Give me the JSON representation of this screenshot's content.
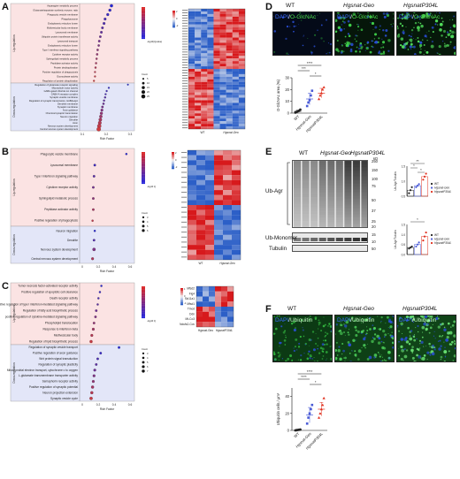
{
  "panels": {
    "A": {
      "label": "A"
    },
    "B": {
      "label": "B"
    },
    "C": {
      "label": "C"
    },
    "D": {
      "label": "D"
    },
    "E": {
      "label": "E"
    },
    "F": {
      "label": "F"
    }
  },
  "dot_plots": [
    {
      "id": "A",
      "up_label": "Up-regulation",
      "down_label": "Down-regulation",
      "up_terms": [
        "Asparagine metabolic process",
        "Glutamate/aspartate synthetic enzyme, ratio",
        "Phagocytic vesicle membrane",
        "Phagolysosome",
        "Endoplasmic reticulum lumen",
        "Multivesicular body membrane",
        "Lysosomal membrane",
        "Ubiquitin protein transferase activity",
        "Lysosomal transport",
        "Endoplasmic reticulum lumen",
        "Type I interferon signaling pathway",
        "Cytokine receptor activity",
        "Sphingolipid metabolic process",
        "Peptidase activator activity",
        "Protein deubiquitination",
        "Positive regulation of phagocytosis",
        "Exonuclease activity",
        "Regulation of protein ubiquitination"
      ],
      "down_terms": [
        "Regulation of glutamate receptor signaling",
        "Microtubule motor activity",
        "GABA-gated chloride ion channel",
        "GABA-A receptor complex",
        "Synaptic vesicle membrane",
        "Regulation of synaptic transmission, GABAergic",
        "Dendrite membrane",
        "Synaptic membrane",
        "Axon guidance",
        "Chemical synaptic transmission",
        "Neuron migration",
        "Dendrite",
        "Axon",
        "Nervous system development",
        "Central nervous system development"
      ],
      "up": [
        [
          0.055,
          14
        ],
        [
          0.052,
          12
        ],
        [
          0.048,
          11
        ],
        [
          0.043,
          10
        ],
        [
          0.041,
          10
        ],
        [
          0.038,
          9
        ],
        [
          0.036,
          9
        ],
        [
          0.034,
          8
        ],
        [
          0.032,
          8
        ],
        [
          0.031,
          7
        ],
        [
          0.029,
          7
        ],
        [
          0.028,
          7
        ],
        [
          0.027,
          6
        ],
        [
          0.026,
          6
        ],
        [
          0.025,
          6
        ],
        [
          0.024,
          5
        ],
        [
          0.024,
          5
        ],
        [
          0.022,
          5
        ]
      ],
      "down": [
        [
          0.086,
          4
        ],
        [
          0.05,
          5
        ],
        [
          0.046,
          5
        ],
        [
          0.044,
          5
        ],
        [
          0.043,
          6
        ],
        [
          0.041,
          6
        ],
        [
          0.04,
          7
        ],
        [
          0.038,
          8
        ],
        [
          0.037,
          10
        ],
        [
          0.036,
          12
        ],
        [
          0.035,
          14
        ],
        [
          0.034,
          16
        ],
        [
          0.033,
          18
        ],
        [
          0.032,
          24
        ],
        [
          0.031,
          26
        ]
      ],
      "x_title": "Rich Factor",
      "x_ticks": [
        "0.1",
        "0.2",
        "0.3"
      ],
      "legend_count": [
        "Count",
        "5",
        "10",
        "15",
        "20",
        "25"
      ],
      "legend_logq": "-log10(Qvalue)"
    },
    {
      "id": "B",
      "up_label": "Up-regulation",
      "down_label": "Down-regulation",
      "up_terms": [
        "Phagocytic vesicle membrane",
        "Lysosomal membrane",
        "Type I interferon signaling pathway",
        "Cytokine receptor activity",
        "Sphingolipid metabolic process",
        "Peptidase activator activity",
        "Positive regulation of phagocytosis"
      ],
      "down_terms": [
        "Neuron migration",
        "Dendrite",
        "Nervous system development",
        "Central nervous system development"
      ],
      "up": [
        [
          0.6,
          3
        ],
        [
          0.17,
          4
        ],
        [
          0.16,
          4
        ],
        [
          0.15,
          4
        ],
        [
          0.15,
          4
        ],
        [
          0.15,
          4
        ],
        [
          0.14,
          3
        ]
      ],
      "down": [
        [
          0.17,
          3
        ],
        [
          0.16,
          4
        ],
        [
          0.16,
          7
        ],
        [
          0.14,
          5
        ]
      ],
      "x_title": "Rich Factor",
      "x_ticks": [
        "0",
        "0.2",
        "0.4",
        "0.6"
      ],
      "legend_count": [
        "Count",
        "3",
        "4",
        "5",
        "6"
      ],
      "legend_logq": "-log10 Q"
    },
    {
      "id": "C",
      "up_label": "Up-regulation",
      "down_label": "Down-regulation",
      "up_terms": [
        "Tumor necrosis factor-activated receptor activity",
        "Positive regulation of apoptotic cell clearance",
        "Death receptor activity",
        "Positive regulation of type I interferon-mediated signaling pathway",
        "Regulation of fatty acid biosynthetic process",
        "positive regulation of cytokine-mediated signaling pathway",
        "Phospholipid translocation",
        "Response to interferon-beta",
        "Multivesicular body",
        "Regulation of lipid biosynthetic process"
      ],
      "down_terms": [
        "Regulation of synaptic vesicle transport",
        "Positive regulation of axon guidance",
        "Wnt protein signal transduction",
        "Regulation of synaptic plasticity",
        "Mitochondrial electron transport, cytochrome c to oxygen",
        "L-glutamate transmembrane transporter activity",
        "Semaphorin receptor activity",
        "Positive regulation of synaptic potential",
        "Neuron projection extension",
        "Synaptic vesicle cycle"
      ],
      "up": [
        [
          0.26,
          3
        ],
        [
          0.24,
          3
        ],
        [
          0.22,
          3
        ],
        [
          0.21,
          3
        ],
        [
          0.19,
          4
        ],
        [
          0.18,
          4
        ],
        [
          0.16,
          4
        ],
        [
          0.15,
          5
        ],
        [
          0.13,
          5
        ],
        [
          0.12,
          6
        ]
      ],
      "down": [
        [
          0.5,
          4
        ],
        [
          0.25,
          4
        ],
        [
          0.21,
          4
        ],
        [
          0.19,
          4
        ],
        [
          0.17,
          5
        ],
        [
          0.16,
          5
        ],
        [
          0.15,
          5
        ],
        [
          0.14,
          6
        ],
        [
          0.13,
          6
        ],
        [
          0.12,
          7
        ]
      ],
      "x_title": "Rich Factor",
      "x_ticks": [
        "0",
        "0.2",
        "0.4",
        "0.6"
      ],
      "legend_count": [
        "Count",
        "3",
        "4",
        "5",
        "6",
        "7"
      ],
      "legend_logq": "-log10 Q"
    }
  ],
  "heatmaps": [
    {
      "id": "A",
      "rows": 46,
      "cols": 9,
      "x_labels": [
        "WT",
        "Hgsnat-Geo"
      ],
      "scale": [
        "2",
        "0",
        "-2"
      ]
    },
    {
      "id": "B",
      "rows": 22,
      "cols": 6,
      "x_labels": [
        "WT",
        "Hgsnat-Geo"
      ],
      "scale": [
        "2",
        "0",
        "-2"
      ]
    },
    {
      "id": "C",
      "rows": 8,
      "cols": 6,
      "x_labels": [
        "Hgsnat-Geo",
        "HgsnatP304L"
      ],
      "row_labels": [
        "Mfsd2",
        "Fig4",
        "Slc11a1",
        "Mfsd1",
        "Tmod",
        "Ddn",
        "Mt-Co3",
        "Ndufs2-Cov"
      ],
      "scale": [
        "1",
        "0",
        "-1"
      ]
    }
  ],
  "panel_D": {
    "titles": [
      "WT",
      "Hgsnat-Geo",
      "HgsnatP304L"
    ],
    "overlay": {
      "dapi": "DAPI",
      "marker": "O-GlcNAc"
    },
    "chart_data": {
      "type": "scatter",
      "categories": [
        "WT",
        "Hgsnat-Geo",
        "HgsnatP304L"
      ],
      "values": [
        1.5,
        12,
        17
      ],
      "points": [
        [
          0.5,
          1,
          1.5,
          2,
          3
        ],
        [
          6,
          9,
          11,
          15,
          19
        ],
        [
          12,
          15,
          17,
          20,
          22
        ]
      ],
      "errors": [
        1,
        5,
        4
      ],
      "ylabel": "O-GlcNAc area (%)",
      "ylim": [
        0,
        30
      ],
      "y_ticks": [
        "0",
        "10",
        "20",
        "30"
      ],
      "significance": [
        "****",
        "***",
        "*"
      ]
    }
  },
  "panel_E": {
    "header": [
      "WT",
      "Hgsnat-Geo",
      "HgsnatP304L"
    ],
    "kd_label": "kD",
    "ladder": [
      "250",
      "150",
      "100",
      "75",
      "50",
      "37",
      "25",
      "20",
      "15",
      "10",
      "50"
    ],
    "rows": [
      "Ub-Agr",
      "Ub-Monomer",
      "Tubulin"
    ],
    "chart_top": {
      "type": "scatter",
      "categories": [
        "WT",
        "Hgsnat-Geo",
        "HgsnatP304L"
      ],
      "values": [
        0.7,
        0.85,
        1.15
      ],
      "points": [
        [
          0.6,
          0.7,
          0.8
        ],
        [
          0.8,
          0.85,
          0.9
        ],
        [
          1.05,
          1.15,
          1.25
        ]
      ],
      "ylabel": "Ub-Agr/Tubulin",
      "y_ticks": [
        "0.5",
        "1.0",
        "1.5"
      ],
      "ylim": [
        0.5,
        1.5
      ],
      "significance": [
        "**",
        "*",
        "*"
      ]
    },
    "chart_bottom": {
      "type": "scatter",
      "categories": [
        "WT",
        "Hgsnat-Geo",
        "HgsnatP304L"
      ],
      "values": [
        0.35,
        0.5,
        0.9
      ],
      "points": [
        [
          0.3,
          0.35,
          0.4
        ],
        [
          0.4,
          0.5,
          0.6
        ],
        [
          0.7,
          0.9,
          1.1
        ]
      ],
      "ylabel": "Ub-Agr/Tubulin",
      "y_ticks": [
        "0.0",
        "0.5",
        "1.0",
        "1.5"
      ],
      "ylim": [
        0,
        1.5
      ],
      "significance": [
        "*"
      ]
    },
    "legend": [
      "WT",
      "Hgsnat-Geo",
      "HgsnatP304L"
    ]
  },
  "panel_F": {
    "titles": [
      "WT",
      "Hgsnat-Geo",
      "HgsnatP304L"
    ],
    "overlay": {
      "dapi": "DAPI",
      "marker": "Ubiquitin"
    },
    "chart_data": {
      "type": "scatter",
      "categories": [
        "WT",
        "Hgsnat-Geo",
        "HgsnatP304L"
      ],
      "values": [
        0.5,
        18,
        25
      ],
      "points": [
        [
          0,
          0.3,
          0.5,
          0.8,
          1
        ],
        [
          8,
          15,
          20,
          25,
          30
        ],
        [
          15,
          20,
          25,
          30,
          38
        ]
      ],
      "errors": [
        0.5,
        9,
        8
      ],
      "ylabel": "Ubiquitin cells / μm²",
      "ylim": [
        0,
        50
      ],
      "y_ticks": [
        "0",
        "20",
        "40"
      ],
      "significance": [
        "****",
        "****",
        "*"
      ]
    }
  },
  "colors": {
    "up_bg": "#fbe3e3",
    "down_bg": "#e3e6f8",
    "wt": "#222222",
    "geo": "#4a5bd6",
    "p304l": "#e0301e",
    "heat_high": "#d7191c",
    "heat_low": "#2c5fc7"
  }
}
